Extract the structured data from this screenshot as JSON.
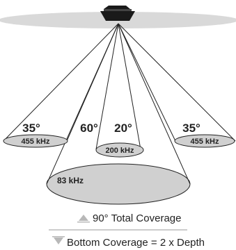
{
  "diagram": {
    "beams": [
      {
        "angle": "35°",
        "frequency": "455 kHz"
      },
      {
        "angle": "60°",
        "frequency": "83 kHz"
      },
      {
        "angle": "20°",
        "frequency": "200 kHz"
      },
      {
        "angle": "35°",
        "frequency": "455 kHz"
      }
    ],
    "legend": {
      "total_coverage": "90° Total Coverage",
      "bottom_coverage": "Bottom Coverage = 2 x Depth"
    },
    "colors": {
      "water_surface": "#d9d9d9",
      "coverage_fill": "#d0d0d0",
      "hull": "#1a1a1a",
      "line": "#222222",
      "legend_icon": "#b8b8b8"
    }
  }
}
